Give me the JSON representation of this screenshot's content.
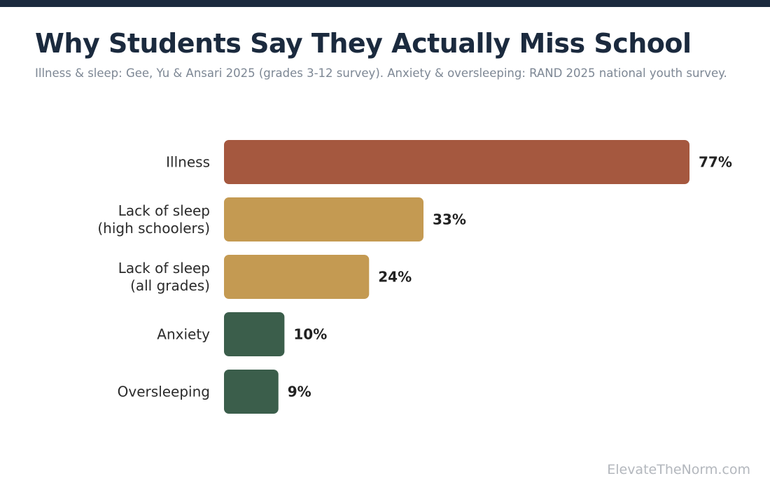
{
  "header": {
    "title": "Why Students Say They Actually Miss School",
    "subtitle": "Illness & sleep: Gee, Yu & Ansari 2025 (grades 3-12 survey). Anxiety & oversleeping: RAND 2025 national youth survey."
  },
  "footer": {
    "brand": "ElevateTheNorm.com"
  },
  "colors": {
    "top_bar": "#1b2a3e",
    "illness": "#a5583f",
    "sleep": "#c49a52",
    "anxiety": "#3b5e4b"
  },
  "chart_data": {
    "type": "bar",
    "orientation": "horizontal",
    "title": "Why Students Say They Actually Miss School",
    "subtitle": "Illness & sleep: Gee, Yu & Ansari 2025 (grades 3-12 survey). Anxiety & oversleeping: RAND 2025 national youth survey.",
    "xlabel": "",
    "ylabel": "",
    "xlim": [
      0,
      77
    ],
    "grid": false,
    "unit": "%",
    "categories": [
      [
        "Illness"
      ],
      [
        "Lack of sleep",
        "(high schoolers)"
      ],
      [
        "Lack of sleep",
        "(all grades)"
      ],
      [
        "Anxiety"
      ],
      [
        "Oversleeping"
      ]
    ],
    "values": [
      77,
      33,
      24,
      10,
      9
    ],
    "value_labels": [
      "77%",
      "33%",
      "24%",
      "10%",
      "9%"
    ],
    "bar_colors": [
      "#a5583f",
      "#c49a52",
      "#c49a52",
      "#3b5e4b",
      "#3b5e4b"
    ]
  }
}
